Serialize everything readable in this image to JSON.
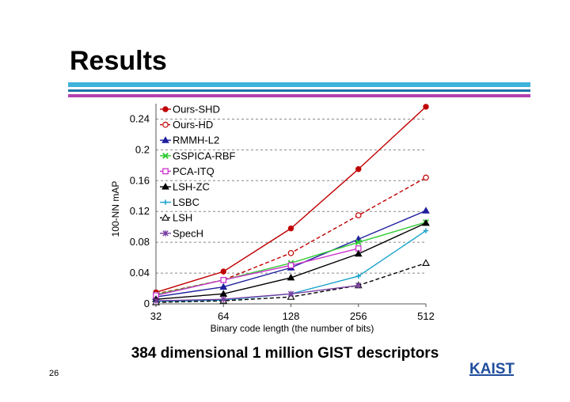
{
  "slide": {
    "title": "Results",
    "caption": "384 dimensional 1 million GIST descriptors",
    "page_number": "26",
    "logo_text": "KAIST"
  },
  "chart_data": {
    "type": "line",
    "title": "",
    "xlabel": "Binary code length (the number of bits)",
    "ylabel": "100-NN mAP",
    "x": [
      "32",
      "64",
      "128",
      "256",
      "512"
    ],
    "ylim": [
      0,
      0.26
    ],
    "yticks": [
      0,
      0.04,
      0.08,
      0.12,
      0.16,
      0.2,
      0.24
    ],
    "ytick_labels": [
      "0",
      "0.04",
      "0.08",
      "0.12",
      "0.16",
      "0.2",
      "0.24"
    ],
    "grid": "horizontal dashed",
    "legend_position": "top-left inside",
    "series": [
      {
        "name": "Ours-SHD",
        "color": "#c00000",
        "marker": "filled-circle",
        "dash": "solid",
        "values": [
          0.015,
          0.042,
          0.098,
          0.175,
          0.256
        ]
      },
      {
        "name": "Ours-HD",
        "color": "#c00000",
        "marker": "open-circle",
        "dash": "dashed",
        "values": [
          0.013,
          0.031,
          0.066,
          0.115,
          0.164
        ]
      },
      {
        "name": "RMMH-L2",
        "color": "#1f1f9e",
        "marker": "triangle",
        "dash": "solid",
        "values": [
          0.009,
          0.022,
          0.047,
          0.084,
          0.121
        ]
      },
      {
        "name": "GSPICA-RBF",
        "color": "#33cc33",
        "marker": "x",
        "dash": "solid",
        "values": [
          0.012,
          0.031,
          0.053,
          0.08,
          0.106
        ]
      },
      {
        "name": "PCA-ITQ",
        "color": "#cc33cc",
        "marker": "square",
        "dash": "solid",
        "values": [
          0.011,
          0.031,
          0.05,
          0.072,
          null
        ]
      },
      {
        "name": "LSH-ZC",
        "color": "#000000",
        "marker": "filled-triangle",
        "dash": "solid",
        "values": [
          0.006,
          0.013,
          0.034,
          0.065,
          0.105
        ]
      },
      {
        "name": "LSBC",
        "color": "#1aa3cc",
        "marker": "plus",
        "dash": "solid",
        "values": [
          0.003,
          0.005,
          0.013,
          0.036,
          0.095
        ]
      },
      {
        "name": "LSH",
        "color": "#000000",
        "marker": "open-triangle",
        "dash": "dashed",
        "values": [
          0.002,
          0.004,
          0.009,
          0.024,
          0.053
        ]
      },
      {
        "name": "SpecH",
        "color": "#7a3fa0",
        "marker": "asterisk",
        "dash": "solid",
        "values": [
          0.004,
          0.006,
          0.013,
          0.024,
          null
        ]
      }
    ]
  }
}
